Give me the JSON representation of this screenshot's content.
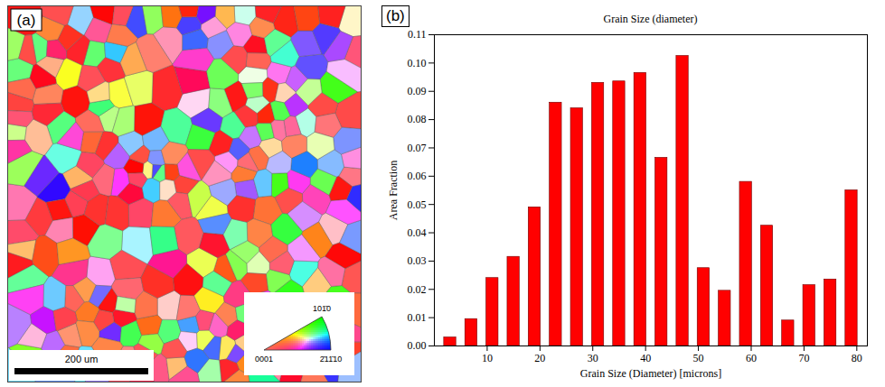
{
  "panel_a": {
    "label": "(a)",
    "scale_bar": "200 um",
    "legend_labels": [
      "0001",
      "2̄11̄10",
      "101̄0"
    ]
  },
  "chart_data": {
    "type": "histogram",
    "title": "Grain Size (diameter)",
    "annotations": [
      "(b)"
    ],
    "x_label": "Grain Size (Diameter) [microns]",
    "y_label": "Area Fraction",
    "bins": [
      1,
      5,
      9,
      13,
      17,
      21,
      25,
      29,
      33,
      37,
      41,
      45,
      49,
      53,
      57,
      61,
      65,
      69,
      73,
      77,
      81
    ],
    "values": [
      0.003,
      0.0095,
      0.024,
      0.0315,
      0.049,
      0.086,
      0.084,
      0.093,
      0.0935,
      0.0965,
      0.0665,
      0.1025,
      0.0275,
      0.0195,
      0.058,
      0.0425,
      0.009,
      0.0215,
      0.0235,
      0.055
    ],
    "color": "#ff0000",
    "xlim": [
      0,
      82
    ],
    "xticks": [
      10,
      20,
      30,
      40,
      50,
      60,
      70,
      80
    ],
    "ylim": [
      0,
      0.11
    ],
    "yticks": [
      {
        "value": 0,
        "label": "0.00"
      },
      {
        "value": 0.01,
        "label": "0.01"
      },
      {
        "value": 0.02,
        "label": "0.02"
      },
      {
        "value": 0.03,
        "label": "0.03"
      },
      {
        "value": 0.04,
        "label": "0.04"
      },
      {
        "value": 0.05,
        "label": "0.05"
      },
      {
        "value": 0.06,
        "label": "0.06"
      },
      {
        "value": 0.07,
        "label": "0.07"
      },
      {
        "value": 0.08,
        "label": "0.08"
      },
      {
        "value": 0.09,
        "label": "0.09"
      },
      {
        "value": 0.1,
        "label": "0.10"
      },
      {
        "value": 0.11,
        "label": "0.11"
      }
    ],
    "grid": false
  }
}
